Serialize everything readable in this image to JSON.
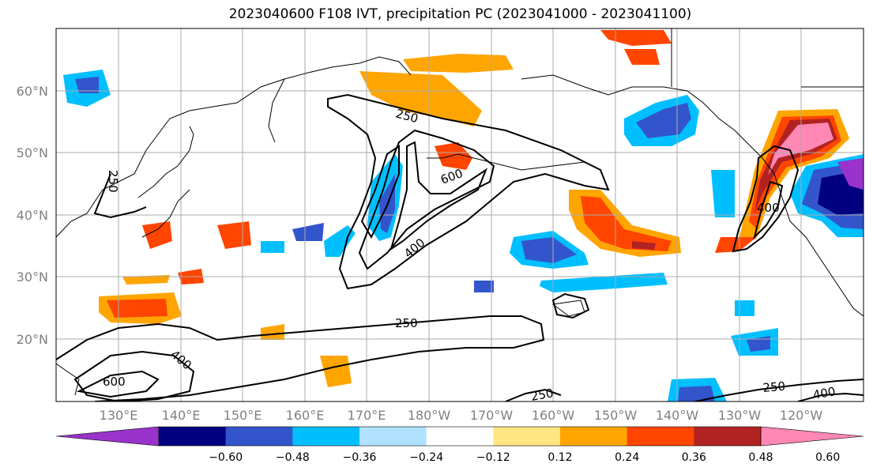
{
  "title": "2023040600 F108 IVT, precipitation PC (2023041000 - 2023041100)",
  "lat_labels": [
    "60°N",
    "50°N",
    "40°N",
    "30°N",
    "20°N"
  ],
  "lon_labels": [
    "130°E",
    "140°E",
    "150°E",
    "160°E",
    "170°E",
    "180°W",
    "170°W",
    "160°W",
    "150°W",
    "140°W",
    "130°W",
    "120°W"
  ],
  "contour_labels": [
    "250",
    "600",
    "400",
    "250",
    "400",
    "600",
    "250",
    "250",
    "400",
    "250",
    "400"
  ],
  "colorbar": {
    "tick_labels": [
      "−0.60",
      "−0.48",
      "−0.36",
      "−0.24",
      "−0.12",
      "0.12",
      "0.24",
      "0.36",
      "0.48",
      "0.60"
    ],
    "colors": [
      "#9933cc",
      "#000080",
      "#3355cc",
      "#00bfff",
      "#b0e2ff",
      "#ffffff",
      "#ffe680",
      "#ffa500",
      "#ff4500",
      "#b22222",
      "#ff88b4"
    ]
  }
}
